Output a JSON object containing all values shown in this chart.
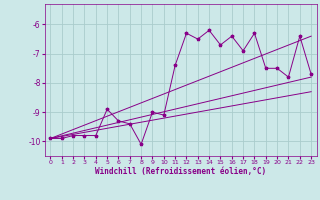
{
  "xlabel": "Windchill (Refroidissement éolien,°C)",
  "background_color": "#cce8e8",
  "grid_color": "#aacccc",
  "line_color": "#880088",
  "xlim": [
    -0.5,
    23.5
  ],
  "ylim": [
    -10.5,
    -5.3
  ],
  "yticks": [
    -10,
    -9,
    -8,
    -7,
    -6
  ],
  "xticks": [
    0,
    1,
    2,
    3,
    4,
    5,
    6,
    7,
    8,
    9,
    10,
    11,
    12,
    13,
    14,
    15,
    16,
    17,
    18,
    19,
    20,
    21,
    22,
    23
  ],
  "series1_x": [
    0,
    1,
    2,
    3,
    4,
    5,
    6,
    7,
    8,
    9,
    10,
    11,
    12,
    13,
    14,
    15,
    16,
    17,
    18,
    19,
    20,
    21,
    22,
    23
  ],
  "series1_y": [
    -9.9,
    -9.9,
    -9.8,
    -9.8,
    -9.8,
    -8.9,
    -9.3,
    -9.4,
    -10.1,
    -9.0,
    -9.1,
    -7.4,
    -6.3,
    -6.5,
    -6.2,
    -6.7,
    -6.4,
    -6.9,
    -6.3,
    -7.5,
    -7.5,
    -7.8,
    -6.4,
    -7.7
  ],
  "series2_x": [
    0,
    23
  ],
  "series2_y": [
    -9.9,
    -7.8
  ],
  "series3_x": [
    0,
    23
  ],
  "series3_y": [
    -9.9,
    -8.3
  ],
  "series4_x": [
    0,
    23
  ],
  "series4_y": [
    -9.9,
    -6.4
  ]
}
